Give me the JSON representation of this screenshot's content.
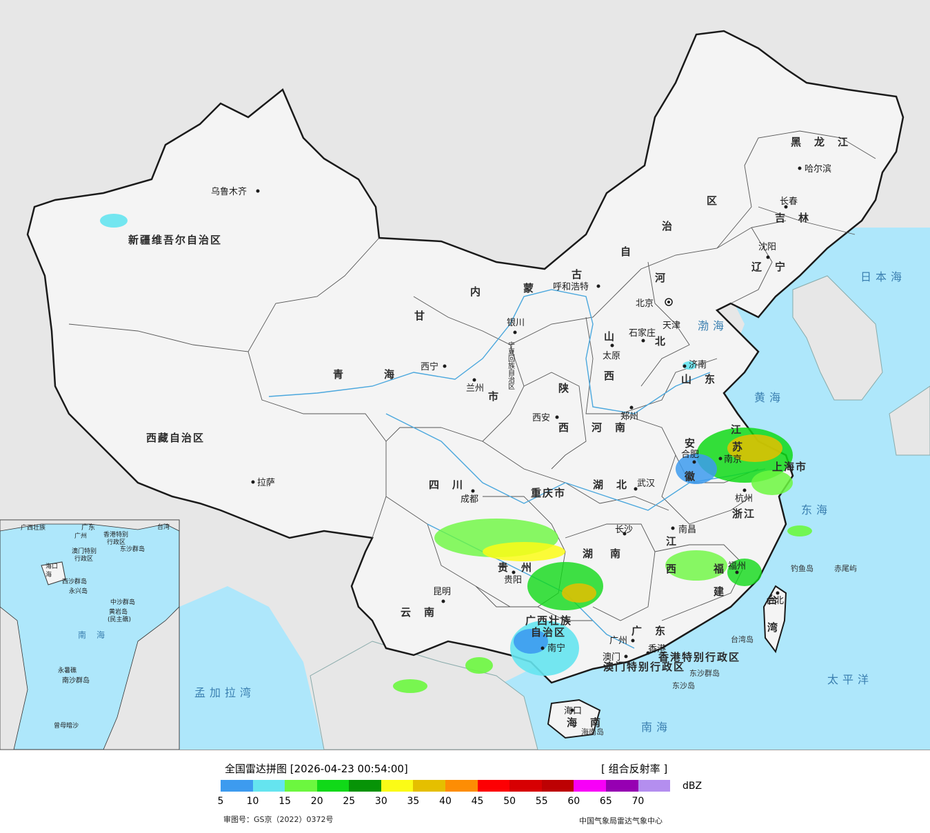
{
  "map": {
    "provinces": [
      {
        "text": "新疆维吾尔自治区",
        "id": "xinjiang"
      },
      {
        "text": "西藏自治区",
        "id": "xizang"
      },
      {
        "text": "青",
        "id": "qinghai-1"
      },
      {
        "text": "海",
        "id": "qinghai-2"
      },
      {
        "text": "甘",
        "id": "gansu-1"
      },
      {
        "text": "内",
        "id": "neimenggu-1"
      },
      {
        "text": "蒙",
        "id": "neimenggu-2"
      },
      {
        "text": "古",
        "id": "neimenggu-3"
      },
      {
        "text": "自",
        "id": "neimenggu-4"
      },
      {
        "text": "治",
        "id": "neimenggu-5"
      },
      {
        "text": "区",
        "id": "neimenggu-6"
      },
      {
        "text": "黑　龙　江",
        "id": "heilongjiang"
      },
      {
        "text": "吉　林",
        "id": "jilin"
      },
      {
        "text": "辽　宁",
        "id": "liaoning"
      },
      {
        "text": "河",
        "id": "hebei-1"
      },
      {
        "text": "北",
        "id": "hebei-2"
      },
      {
        "text": "山",
        "id": "shanxi-1"
      },
      {
        "text": "西",
        "id": "shanxi-2"
      },
      {
        "text": "陕",
        "id": "shaanxi-1"
      },
      {
        "text": "西",
        "id": "shaanxi-2"
      },
      {
        "text": "山　东",
        "id": "shandong"
      },
      {
        "text": "河　南",
        "id": "henan"
      },
      {
        "text": "江",
        "id": "jiangsu-1"
      },
      {
        "text": "苏",
        "id": "jiangsu-2"
      },
      {
        "text": "安",
        "id": "anhui-1"
      },
      {
        "text": "徽",
        "id": "anhui-2"
      },
      {
        "text": "湖　北",
        "id": "hubei"
      },
      {
        "text": "四　川",
        "id": "sichuan"
      },
      {
        "text": "重庆市",
        "id": "chongqing"
      },
      {
        "text": "湖",
        "id": "hunan-1"
      },
      {
        "text": "南",
        "id": "hunan-2"
      },
      {
        "text": "江",
        "id": "jiangxi-1"
      },
      {
        "text": "西",
        "id": "jiangxi-2"
      },
      {
        "text": "浙江",
        "id": "zhejiang"
      },
      {
        "text": "福",
        "id": "fujian-1"
      },
      {
        "text": "建",
        "id": "fujian-2"
      },
      {
        "text": "贵　州",
        "id": "guizhou"
      },
      {
        "text": "云　南",
        "id": "yunnan"
      },
      {
        "text": "广西壮族",
        "id": "guangxi-1"
      },
      {
        "text": "自治区",
        "id": "guangxi-2"
      },
      {
        "text": "广　东",
        "id": "guangdong"
      },
      {
        "text": "海　南",
        "id": "hainan"
      },
      {
        "text": "台",
        "id": "taiwan-1"
      },
      {
        "text": "湾",
        "id": "taiwan-2"
      },
      {
        "text": "上海市",
        "id": "shanghai"
      },
      {
        "text": "天津",
        "id": "tianjin"
      },
      {
        "text": "宁夏回族自治区",
        "id": "ningxia"
      },
      {
        "text": "市",
        "id": "gansu-2"
      },
      {
        "text": "香港特别行政区",
        "id": "hongkong-sar"
      },
      {
        "text": "澳门特别行政区",
        "id": "macau-sar"
      }
    ],
    "cities": [
      {
        "text": "乌鲁木齐",
        "id": "urumqi"
      },
      {
        "text": "拉萨",
        "id": "lhasa"
      },
      {
        "text": "西宁",
        "id": "xining"
      },
      {
        "text": "兰州",
        "id": "lanzhou"
      },
      {
        "text": "银川",
        "id": "yinchuan"
      },
      {
        "text": "呼和浩特",
        "id": "hohhot"
      },
      {
        "text": "哈尔滨",
        "id": "harbin"
      },
      {
        "text": "长春",
        "id": "changchun"
      },
      {
        "text": "沈阳",
        "id": "shenyang"
      },
      {
        "text": "北京",
        "id": "beijing"
      },
      {
        "text": "石家庄",
        "id": "shijiazhuang"
      },
      {
        "text": "太原",
        "id": "taiyuan"
      },
      {
        "text": "济南",
        "id": "jinan"
      },
      {
        "text": "郑州",
        "id": "zhengzhou"
      },
      {
        "text": "西安",
        "id": "xian"
      },
      {
        "text": "合肥",
        "id": "hefei"
      },
      {
        "text": "南京",
        "id": "nanjing"
      },
      {
        "text": "杭州",
        "id": "hangzhou"
      },
      {
        "text": "武汉",
        "id": "wuhan"
      },
      {
        "text": "成都",
        "id": "chengdu"
      },
      {
        "text": "长沙",
        "id": "changsha"
      },
      {
        "text": "南昌",
        "id": "nanchang"
      },
      {
        "text": "福州",
        "id": "fuzhou"
      },
      {
        "text": "贵阳",
        "id": "guiyang"
      },
      {
        "text": "昆明",
        "id": "kunming"
      },
      {
        "text": "南宁",
        "id": "nanning"
      },
      {
        "text": "广州",
        "id": "guangzhou"
      },
      {
        "text": "澳门",
        "id": "macau"
      },
      {
        "text": "香港",
        "id": "hongkong"
      },
      {
        "text": "海口",
        "id": "haikou"
      },
      {
        "text": "台北",
        "id": "taipei"
      }
    ],
    "seas": [
      {
        "text": "渤海",
        "id": "bohai"
      },
      {
        "text": "黄海",
        "id": "huanghai"
      },
      {
        "text": "东海",
        "id": "donghai"
      },
      {
        "text": "日本海",
        "id": "ribenhai"
      },
      {
        "text": "太平洋",
        "id": "taipingyang"
      },
      {
        "text": "南海",
        "id": "nanhai"
      },
      {
        "text": "孟加拉湾",
        "id": "mengjialawan"
      }
    ],
    "islands": [
      {
        "text": "钓鱼岛",
        "id": "diaoyudao"
      },
      {
        "text": "赤尾屿",
        "id": "chiweiyu"
      },
      {
        "text": "台湾岛",
        "id": "taiwandao"
      },
      {
        "text": "东沙群岛",
        "id": "dongsha-qundao"
      },
      {
        "text": "东沙岛",
        "id": "dongshadao"
      },
      {
        "text": "海南岛",
        "id": "hainandao"
      }
    ],
    "inset": {
      "labels": [
        {
          "text": "广东",
          "id": "in-guangdong"
        },
        {
          "text": "广西壮族",
          "id": "in-guangxi"
        },
        {
          "text": "广州",
          "id": "in-guangzhou"
        },
        {
          "text": "香港特别",
          "id": "in-hk-1"
        },
        {
          "text": "行政区",
          "id": "in-hk-2"
        },
        {
          "text": "澳门特别",
          "id": "in-mo-1"
        },
        {
          "text": "行政区",
          "id": "in-mo-2"
        },
        {
          "text": "东沙群岛",
          "id": "in-dongsha"
        },
        {
          "text": "台湾",
          "id": "in-taiwan"
        },
        {
          "text": "海口",
          "id": "in-haikou"
        },
        {
          "text": "海",
          "id": "in-hainan"
        },
        {
          "text": "西沙群岛",
          "id": "in-xisha"
        },
        {
          "text": "永兴岛",
          "id": "in-yongxing"
        },
        {
          "text": "中沙群岛",
          "id": "in-zhongsha"
        },
        {
          "text": "黄岩岛",
          "id": "in-huangyan"
        },
        {
          "text": "(民主礁)",
          "id": "in-minzhu"
        },
        {
          "text": "南",
          "id": "in-nan"
        },
        {
          "text": "海",
          "id": "in-hai"
        },
        {
          "text": "永暑礁",
          "id": "in-yongshu"
        },
        {
          "text": "南沙群岛",
          "id": "in-nansha"
        },
        {
          "text": "曾母暗沙",
          "id": "in-zengmu"
        }
      ]
    }
  },
  "legend": {
    "title": "全国雷达拼图 [2026-04-23 00:54:00]",
    "product": "[ 组合反射率 ]",
    "unit": "dBZ",
    "ticks": [
      "5",
      "10",
      "15",
      "20",
      "25",
      "30",
      "35",
      "40",
      "45",
      "50",
      "55",
      "60",
      "65",
      "70"
    ],
    "colors": [
      "#3d9bef",
      "#65e4ef",
      "#6cf73f",
      "#10d918",
      "#079307",
      "#fbfb16",
      "#e5bf00",
      "#fd8d04",
      "#fd0003",
      "#d70002",
      "#bd0103",
      "#f800f8",
      "#9600b2",
      "#b48eef"
    ],
    "review_no": "审图号：GS京（2022）0372号",
    "agency": "中国气象局雷达气象中心"
  }
}
